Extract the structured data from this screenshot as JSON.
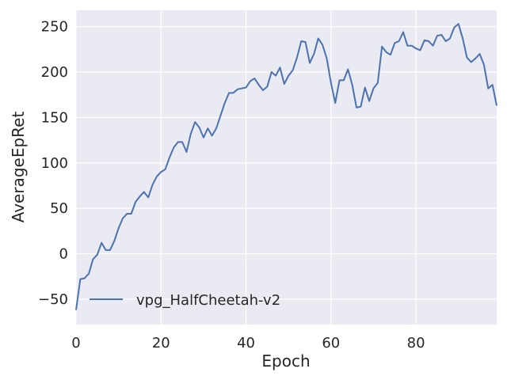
{
  "chart_data": {
    "type": "line",
    "xlabel": "Epoch",
    "ylabel": "AverageEpRet",
    "xlim": [
      0,
      99
    ],
    "ylim": [
      -78,
      268
    ],
    "grid": true,
    "background": "#eaeaf2",
    "grid_color": "#ffffff",
    "legend_position": "lower-left",
    "xticks": [
      0,
      20,
      40,
      60,
      80
    ],
    "xtick_labels": [
      "0",
      "20",
      "40",
      "60",
      "80"
    ],
    "yticks": [
      -50,
      0,
      50,
      100,
      150,
      200,
      250
    ],
    "ytick_labels": [
      "−50",
      "0",
      "50",
      "100",
      "150",
      "200",
      "250"
    ],
    "series": [
      {
        "name": "vpg_HalfCheetah-v2",
        "color": "#4c72b0",
        "x": [
          0,
          1,
          2,
          3,
          4,
          5,
          6,
          7,
          8,
          9,
          10,
          11,
          12,
          13,
          14,
          15,
          16,
          17,
          18,
          19,
          20,
          21,
          22,
          23,
          24,
          25,
          26,
          27,
          28,
          29,
          30,
          31,
          32,
          33,
          34,
          35,
          36,
          37,
          38,
          39,
          40,
          41,
          42,
          43,
          44,
          45,
          46,
          47,
          48,
          49,
          50,
          51,
          52,
          53,
          54,
          55,
          56,
          57,
          58,
          59,
          60,
          61,
          62,
          63,
          64,
          65,
          66,
          67,
          68,
          69,
          70,
          71,
          72,
          73,
          74,
          75,
          76,
          77,
          78,
          79,
          80,
          81,
          82,
          83,
          84,
          85,
          86,
          87,
          88,
          89,
          90,
          91,
          92,
          93,
          94,
          95,
          96,
          97,
          98,
          99
        ],
        "y": [
          -62,
          -28,
          -27,
          -22,
          -6,
          -1,
          12,
          4,
          4,
          14,
          28,
          39,
          44,
          44,
          57,
          63,
          68,
          62,
          76,
          85,
          90,
          93,
          106,
          117,
          123,
          123,
          112,
          132,
          145,
          139,
          128,
          138,
          130,
          138,
          152,
          166,
          177,
          177,
          181,
          182,
          183,
          190,
          193,
          186,
          180,
          184,
          200,
          196,
          205,
          187,
          196,
          202,
          216,
          234,
          233,
          210,
          220,
          237,
          230,
          215,
          188,
          166,
          191,
          191,
          203,
          186,
          161,
          162,
          183,
          168,
          182,
          188,
          228,
          222,
          219,
          232,
          234,
          244,
          229,
          229,
          226,
          224,
          235,
          234,
          229,
          240,
          241,
          234,
          237,
          249,
          253,
          237,
          216,
          211,
          215,
          220,
          208,
          182,
          186,
          163
        ]
      }
    ]
  }
}
